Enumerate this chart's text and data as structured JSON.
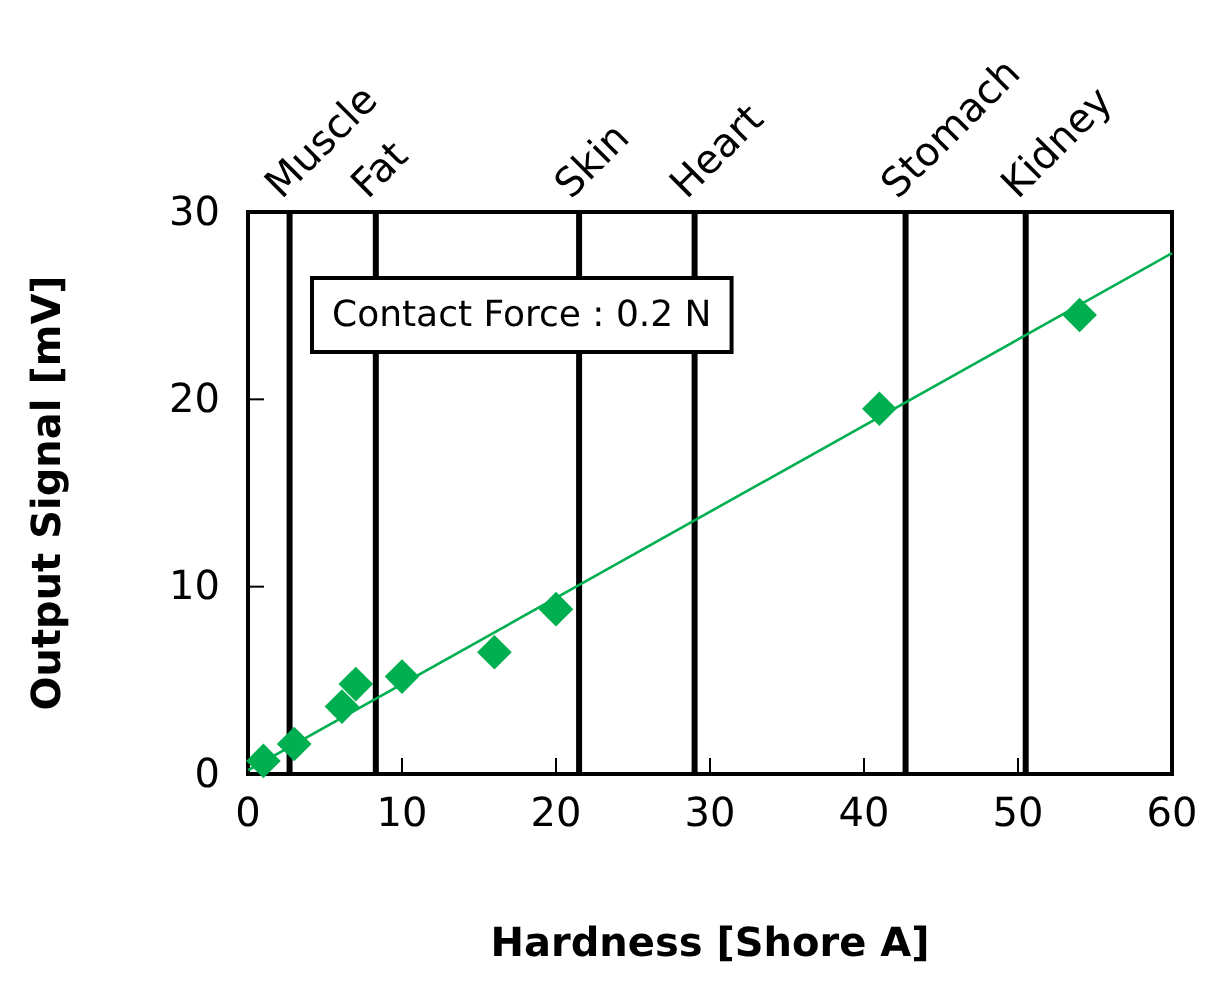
{
  "chart_data": {
    "type": "scatter",
    "xlabel": "Hardness [Shore A]",
    "ylabel": "Output Signal [mV]",
    "xlim": [
      0,
      60
    ],
    "xticks": [
      0,
      10,
      20,
      30,
      40,
      50,
      60
    ],
    "ylim": [
      0,
      30
    ],
    "yticks": [
      0,
      10,
      20,
      30
    ],
    "grid": false,
    "series": [
      {
        "color": "#00b050",
        "marker": "diamond",
        "x": [
          1.0,
          3.0,
          6.1,
          7.0,
          10.0,
          16.0,
          20.0,
          41.0,
          54.0
        ],
        "values": [
          0.7,
          1.6,
          3.6,
          4.8,
          5.2,
          6.5,
          8.8,
          19.5,
          24.5
        ]
      },
      {
        "type": "line",
        "color": "#00b050",
        "marker": "none",
        "line_style": "solid",
        "x": [
          0,
          60
        ],
        "values": [
          0.2,
          27.8
        ]
      }
    ],
    "ref_lines": [
      {
        "axis": "x",
        "value": 2.7,
        "label": "Muscle",
        "color": "#000000"
      },
      {
        "axis": "x",
        "value": 8.3,
        "label": "Fat",
        "color": "#000000"
      },
      {
        "axis": "x",
        "value": 21.5,
        "label": "Skin",
        "color": "#000000"
      },
      {
        "axis": "x",
        "value": 29.0,
        "label": "Heart",
        "color": "#000000"
      },
      {
        "axis": "x",
        "value": 42.7,
        "label": "Stomach",
        "color": "#000000"
      },
      {
        "axis": "x",
        "value": 50.5,
        "label": "Kidney",
        "color": "#000000"
      }
    ],
    "annotations": [
      "Contact Force : 0.2 N"
    ]
  }
}
